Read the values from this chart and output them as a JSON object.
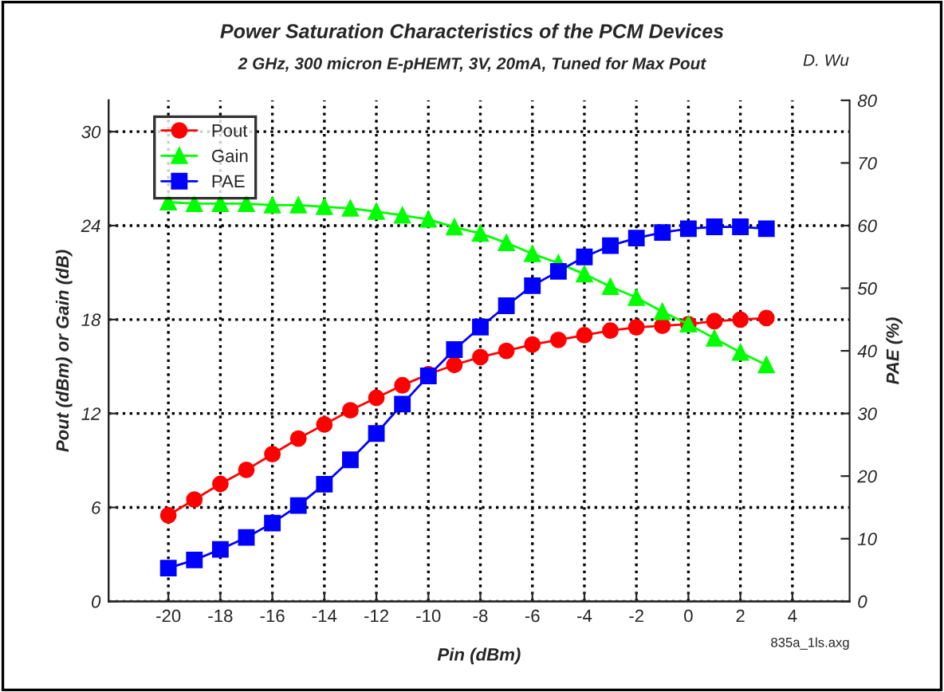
{
  "chart_data": {
    "type": "line",
    "title": "Power Saturation Characteristics of the PCM Devices",
    "subtitle": "2 GHz, 300 micron E-pHEMT, 3V, 20mA, Tuned for Max Pout",
    "xlabel": "Pin (dBm)",
    "ylabel": "Pout (dBm) or Gain (dB)",
    "y2label": "PAE (%)",
    "x": [
      -20,
      -19,
      -18,
      -17,
      -16,
      -15,
      -14,
      -13,
      -12,
      -11,
      -10,
      -9,
      -8,
      -7,
      -6,
      -5,
      -4,
      -3,
      -2,
      -1,
      0,
      1,
      2,
      3
    ],
    "series": [
      {
        "name": "Pout",
        "color": "#ff0000",
        "marker": "circle",
        "values": [
          5.5,
          6.5,
          7.5,
          8.4,
          9.4,
          10.4,
          11.3,
          12.2,
          13.0,
          13.8,
          14.5,
          15.1,
          15.6,
          16.0,
          16.4,
          16.7,
          17.0,
          17.3,
          17.5,
          17.6,
          17.7,
          17.9,
          18.0,
          18.1
        ]
      },
      {
        "name": "Gain",
        "color": "#00ff00",
        "marker": "triangle",
        "values": [
          25.5,
          25.4,
          25.4,
          25.4,
          25.3,
          25.3,
          25.2,
          25.1,
          24.9,
          24.65,
          24.4,
          23.9,
          23.5,
          22.9,
          22.2,
          21.6,
          20.9,
          20.1,
          19.4,
          18.5,
          17.7,
          16.8,
          15.9,
          15.1
        ]
      },
      {
        "name": "PAE",
        "color": "#0000ff",
        "marker": "square",
        "axis": "y2",
        "values": [
          5.3,
          6.6,
          8.3,
          10.2,
          12.5,
          15.3,
          18.7,
          22.6,
          26.8,
          31.5,
          36.0,
          40.2,
          43.8,
          47.2,
          50.4,
          52.7,
          55.0,
          56.8,
          58.0,
          58.9,
          59.5,
          59.8,
          59.8,
          59.5
        ]
      }
    ],
    "xlim": [
      -22.3,
      6.2
    ],
    "xticks": [
      -20,
      -18,
      -16,
      -14,
      -12,
      -10,
      -8,
      -6,
      -4,
      -2,
      0,
      2,
      4
    ],
    "ylim": [
      0,
      32
    ],
    "yticks": [
      0,
      6,
      12,
      18,
      24,
      30
    ],
    "y2lim": [
      0,
      80
    ],
    "y2ticks": [
      0,
      10,
      20,
      30,
      40,
      50,
      60,
      70,
      80
    ],
    "grid": true,
    "legend": "top left",
    "line_style": "solid",
    "annotations": [
      "D. Wu",
      "835a_1ls.axg"
    ]
  }
}
